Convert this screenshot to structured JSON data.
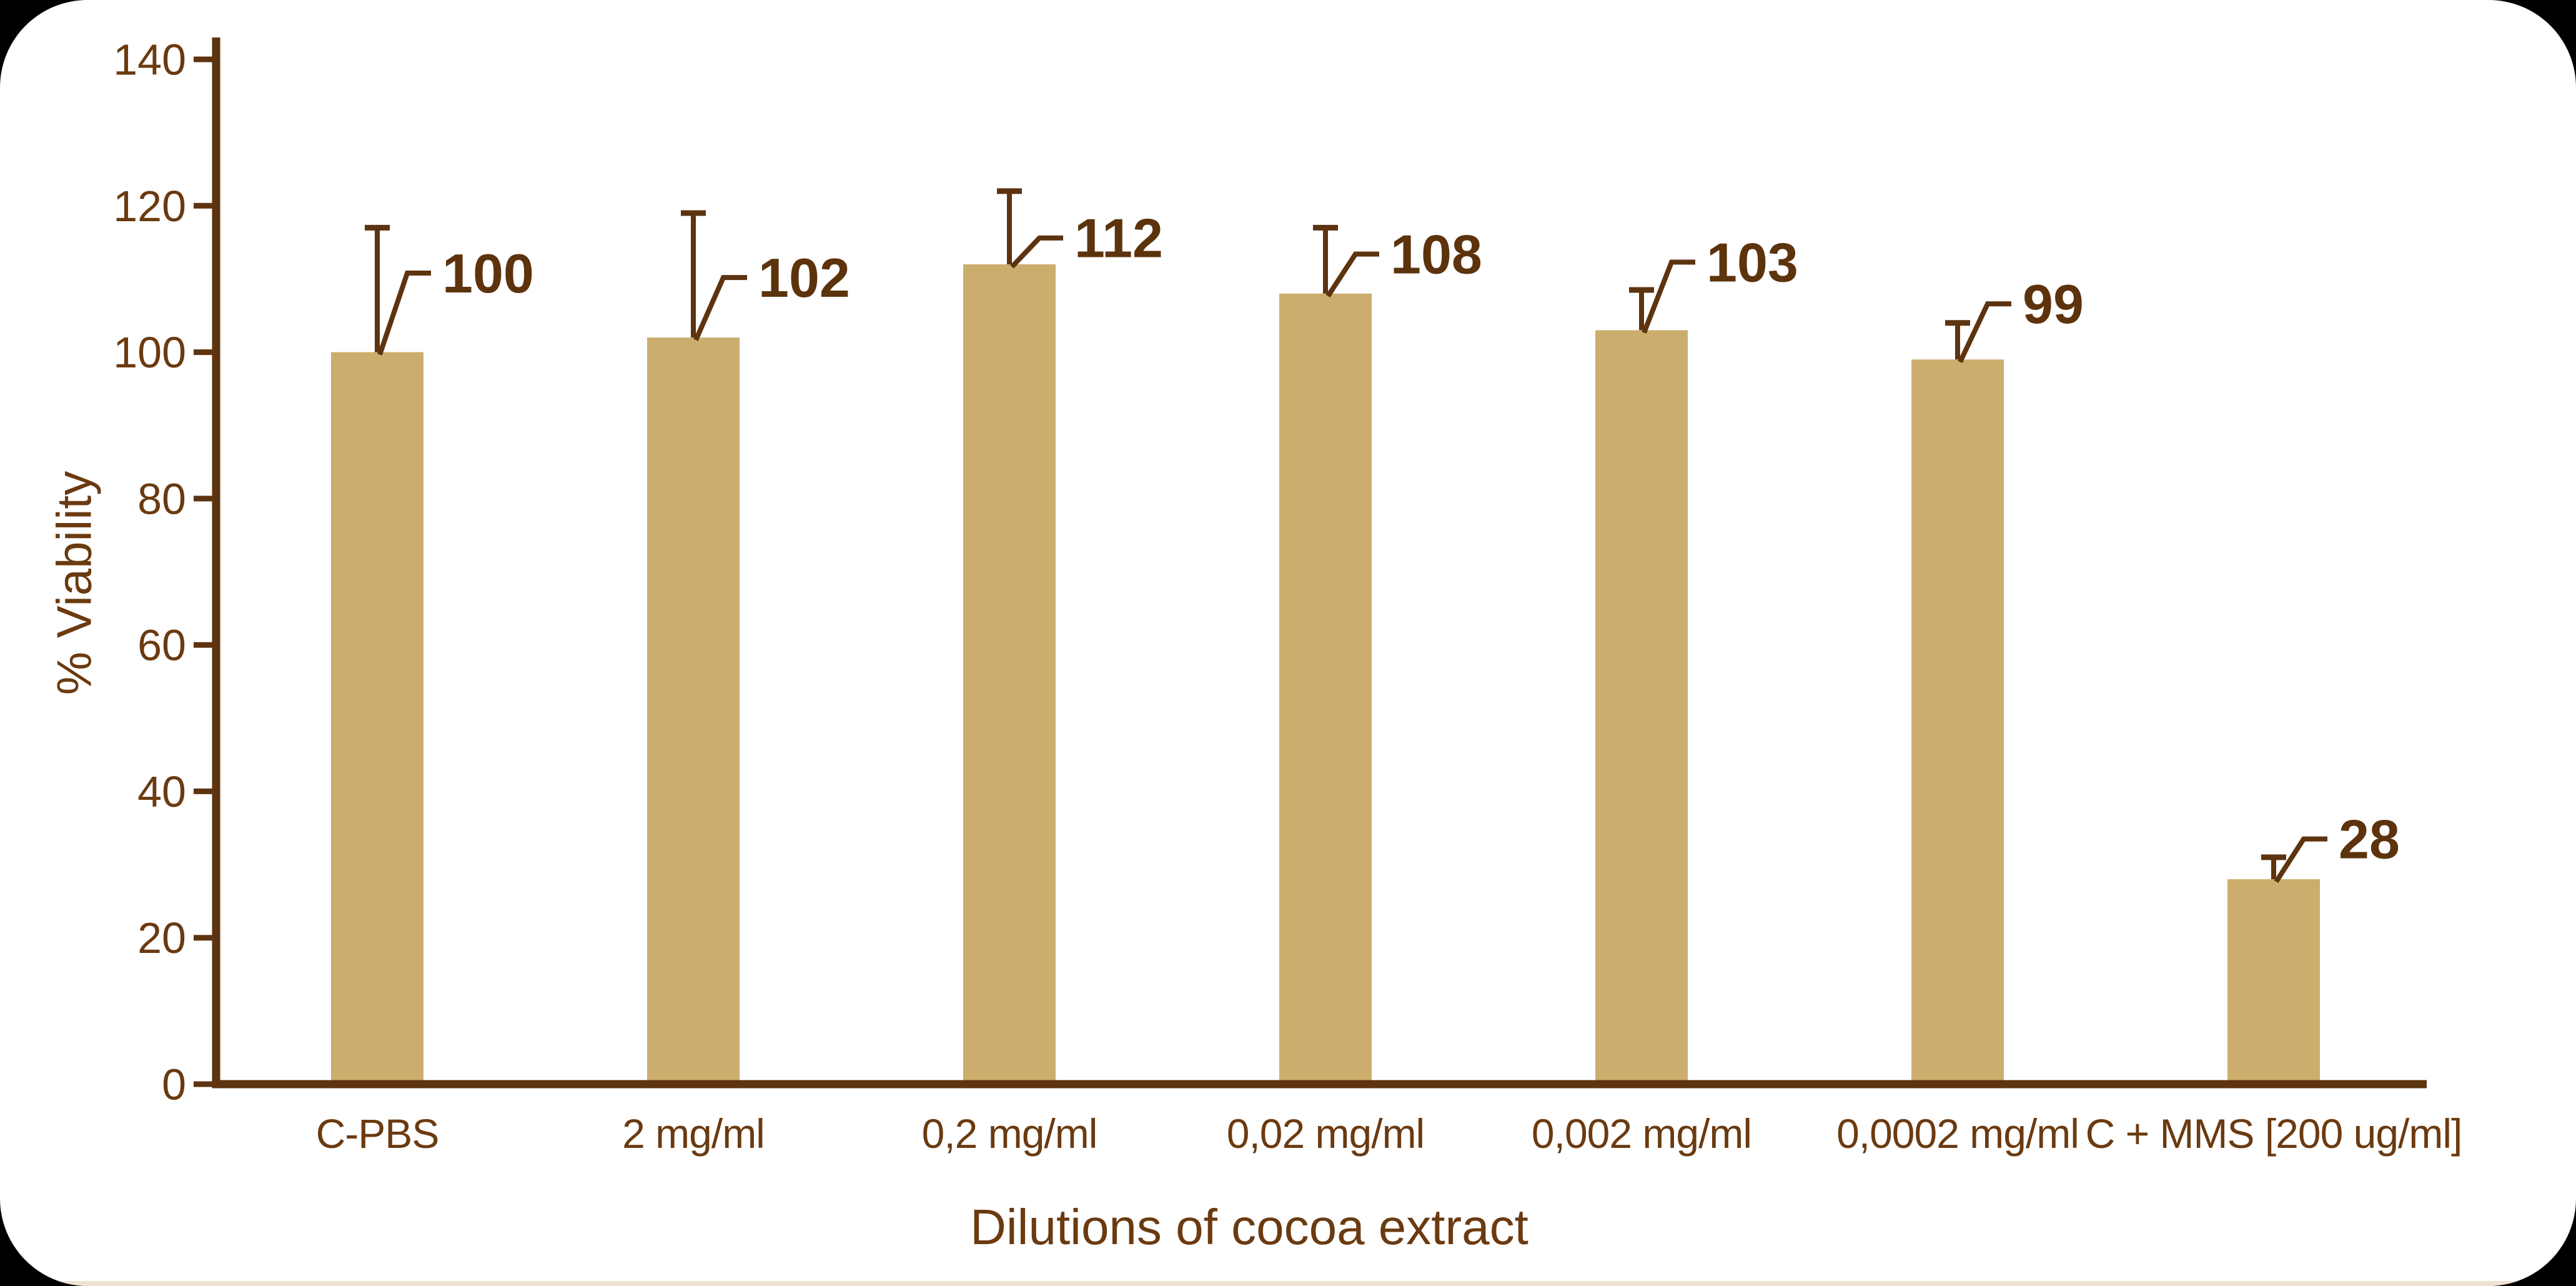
{
  "frame": {
    "background": "#000000",
    "card_color": "#ffffff",
    "bottom_edge_color": "#efe3cf"
  },
  "chart_data": {
    "type": "bar",
    "title": "",
    "xlabel": "Dilutions of cocoa extract",
    "ylabel": "% Viability",
    "categories": [
      "C-PBS",
      "2 mg/ml",
      "0,2 mg/ml",
      "0,02 mg/ml",
      "0,002 mg/ml",
      "0,0002 mg/ml",
      "C + MMS [200 ug/ml]"
    ],
    "values": [
      100,
      102,
      112,
      108,
      103,
      99,
      28
    ],
    "data_labels": [
      "100",
      "102",
      "112",
      "108",
      "103",
      "99",
      "28"
    ],
    "error_upper": [
      117,
      119,
      122,
      117,
      108.5,
      104,
      31
    ],
    "label_levels": [
      110.8,
      110.2,
      115.6,
      113.4,
      112.3,
      106.6,
      33.5
    ],
    "ylim": [
      0,
      140
    ],
    "yticks": [
      0,
      20,
      40,
      60,
      80,
      100,
      120,
      140
    ],
    "grid": false,
    "legend": "none",
    "colors": {
      "bar": "#cbae6d",
      "axis": "#5d3310",
      "tick_text": "#6b3a10",
      "category_text": "#6b3a10",
      "data_label_text": "#5c330c",
      "error_line": "#5d3310",
      "leader_line": "#5d3310",
      "title_text": "#6b3a10"
    }
  }
}
